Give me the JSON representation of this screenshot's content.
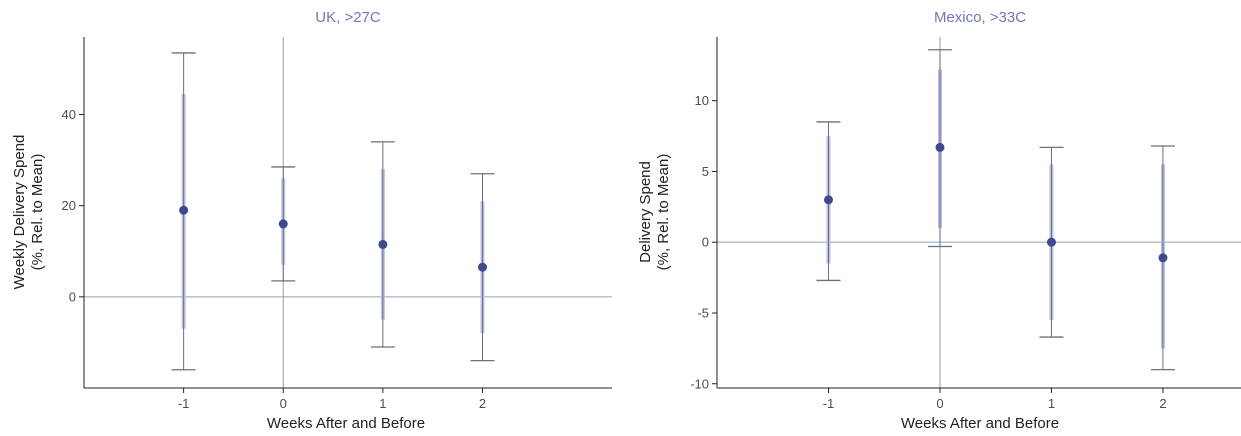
{
  "colors": {
    "title": "#6f78b8",
    "point": "#3d4a8c",
    "thick_band": "#b9c2e2",
    "whisker": "#6b6f80",
    "axis": "#222222",
    "zero_line": "#b9c6cf",
    "vline": "#9a9a9a"
  },
  "chart_data": [
    {
      "type": "scatter",
      "title": "UK, >27C",
      "xlabel": "Weeks After and Before",
      "ylabel_line1": "Weekly Delivery Spend",
      "ylabel_line2": "(%, Rel. to Mean)",
      "x": [
        -1,
        0,
        1,
        2
      ],
      "x_tick_labels": [
        "-1",
        "0",
        "1",
        "2"
      ],
      "xlim": [
        -2,
        3.3
      ],
      "ylim": [
        -20,
        57
      ],
      "y_ticks": [
        0,
        20,
        40
      ],
      "y_tick_labels": [
        "0",
        "20",
        "40"
      ],
      "estimate": [
        19,
        16,
        11.5,
        6.5
      ],
      "ci_low": [
        -16,
        3.5,
        -11,
        -14
      ],
      "ci_high": [
        53.5,
        28.5,
        34,
        27
      ],
      "band_low": [
        -7,
        7,
        -5,
        -8
      ],
      "band_high": [
        44.5,
        26,
        28,
        21
      ],
      "reference_line_y": 0,
      "reference_line_x": 0
    },
    {
      "type": "scatter",
      "title": "Mexico, >33C",
      "xlabel": "Weeks After and Before",
      "ylabel_line1": "Delivery Spend",
      "ylabel_line2": "(%, Rel. to Mean)",
      "x": [
        -1,
        0,
        1,
        2
      ],
      "x_tick_labels": [
        "-1",
        "0",
        "1",
        "2"
      ],
      "xlim": [
        -2,
        2.7
      ],
      "ylim": [
        -10.3,
        14.5
      ],
      "y_ticks": [
        -10,
        -5,
        0,
        5,
        10
      ],
      "y_tick_labels": [
        "-10",
        "-5",
        "0",
        "5",
        "10"
      ],
      "estimate": [
        3,
        6.7,
        0,
        -1.1
      ],
      "ci_low": [
        -2.7,
        -0.3,
        -6.7,
        -9
      ],
      "ci_high": [
        8.5,
        13.6,
        6.7,
        6.8
      ],
      "band_low": [
        -1.5,
        1,
        -5.5,
        -7.5
      ],
      "band_high": [
        7.5,
        12.2,
        5.5,
        5.5
      ],
      "reference_line_y": 0,
      "reference_line_x": 0
    }
  ]
}
